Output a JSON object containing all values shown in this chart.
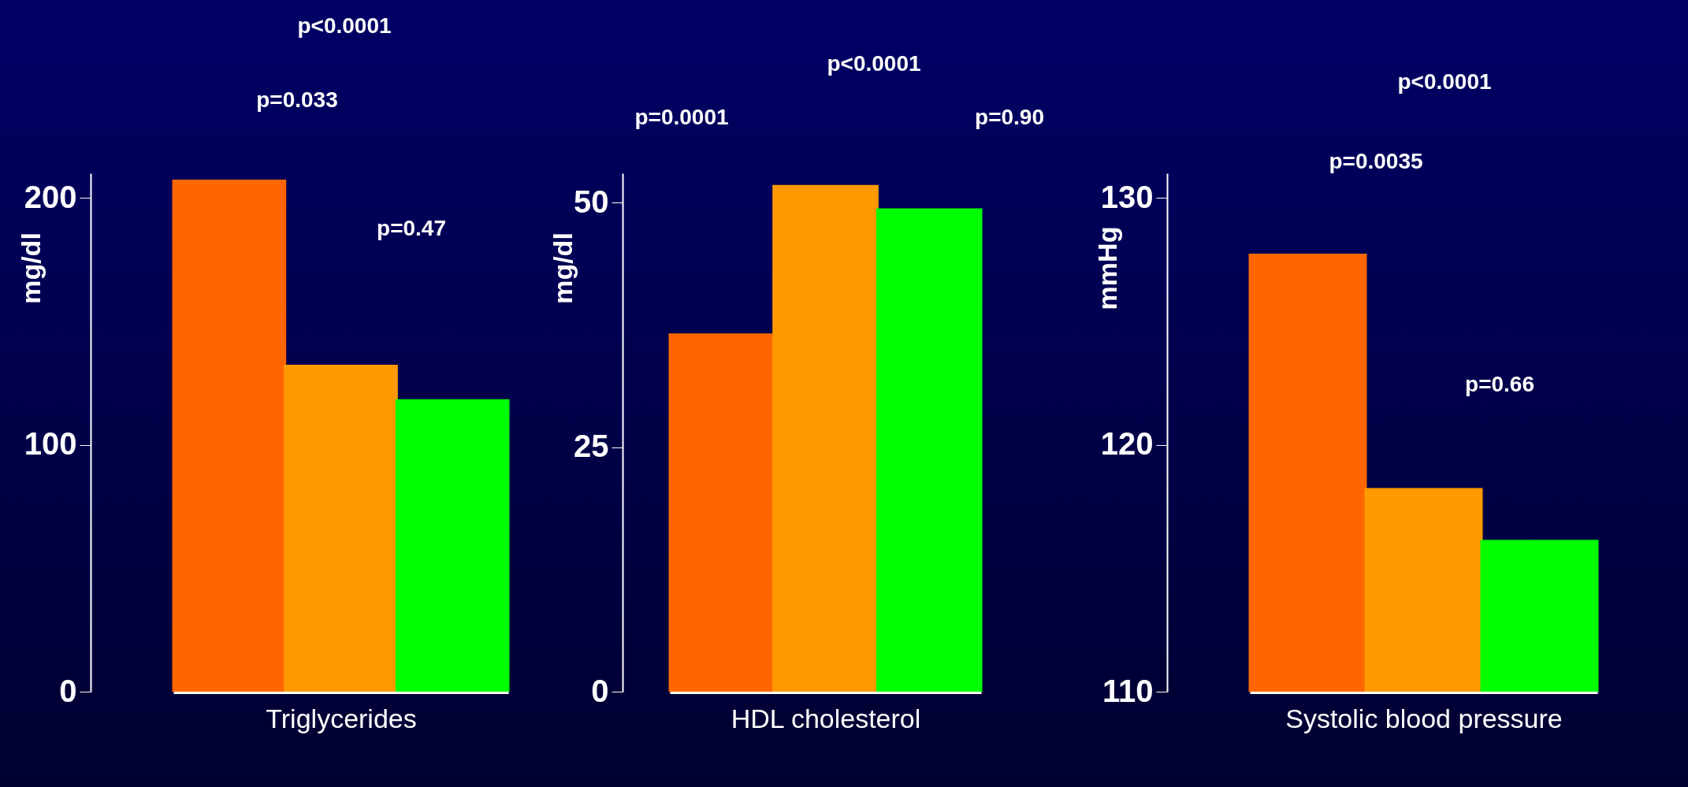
{
  "chart_data": [
    {
      "type": "bar",
      "categories": [
        null,
        null,
        null
      ],
      "values": [
        207,
        132,
        118
      ],
      "colors": [
        "#ff6600",
        "#ff9900",
        "#00ff00"
      ],
      "ylabel": "mg/dl",
      "xlabel": "Triglycerides",
      "ylim": [
        0,
        210
      ],
      "yticks": [
        0,
        100,
        200
      ],
      "grid": false,
      "annotations": [
        "p<0.0001",
        "p=0.033",
        "p=0.47"
      ]
    },
    {
      "type": "bar",
      "categories": [
        null,
        null,
        null
      ],
      "values": [
        36.5,
        51.7,
        49.3
      ],
      "colors": [
        "#ff6600",
        "#ff9900",
        "#00ff00"
      ],
      "ylabel": "mg/dl",
      "xlabel": "HDL cholesterol",
      "ylim": [
        0,
        53
      ],
      "yticks": [
        0,
        25,
        50
      ],
      "grid": false,
      "annotations": [
        "p<0.0001",
        "p=0.0001",
        "p=0.90"
      ]
    },
    {
      "type": "bar",
      "categories": [
        null,
        null,
        null
      ],
      "values": [
        127.7,
        118.2,
        116.1
      ],
      "colors": [
        "#ff6600",
        "#ff9900",
        "#00ff00"
      ],
      "ylabel": "mmHg",
      "xlabel": "Systolic blood pressure",
      "ylim": [
        110,
        131
      ],
      "yticks": [
        110,
        120,
        130
      ],
      "grid": false,
      "annotations": [
        "p<0.0001",
        "p=0.0035",
        "p=0.66"
      ]
    }
  ]
}
